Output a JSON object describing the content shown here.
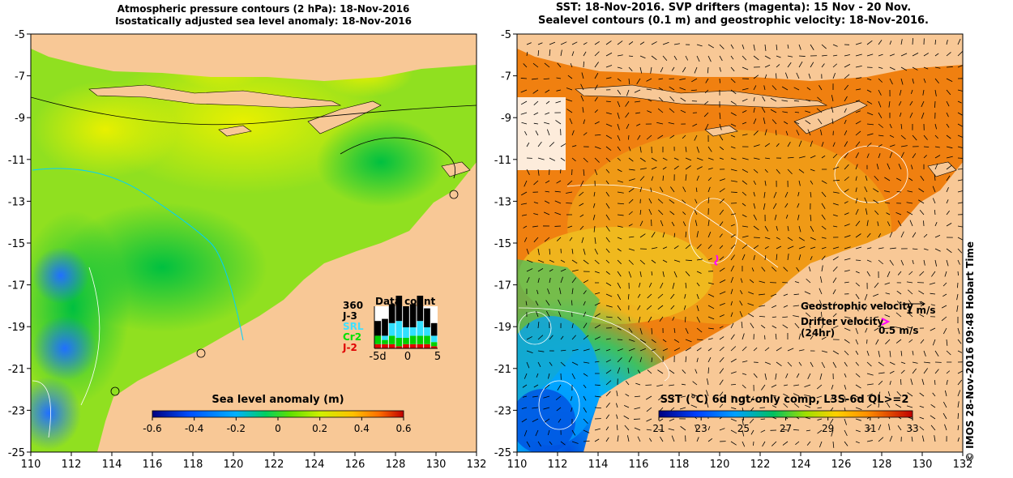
{
  "left_panel": {
    "title_line1": "Atmospheric pressure contours (2 hPa): 18-Nov-2016",
    "title_line2": "Isostatically adjusted sea level anomaly: 18-Nov-2016",
    "colorbar": {
      "title": "Sea level anomaly (m)",
      "ticks": [
        "-0.6",
        "-0.4",
        "-0.2",
        "0",
        "0.2",
        "0.4",
        "0.6"
      ]
    },
    "data_count": {
      "title": "Data count",
      "max_label": "360",
      "sat1": "J-3",
      "sat2": "SRL",
      "sat3": "Cr2",
      "sat4": "J-2",
      "axis_ticks": [
        "-5d",
        "0",
        "5"
      ],
      "bars": [
        {
          "J-2": 0.1,
          "Cr2": 0.2,
          "SRL": 0.0,
          "J-3": 0.35
        },
        {
          "J-2": 0.1,
          "Cr2": 0.1,
          "SRL": 0.1,
          "J-3": 0.4
        },
        {
          "J-2": 0.1,
          "Cr2": 0.2,
          "SRL": 0.3,
          "J-3": 0.45
        },
        {
          "J-2": 0.05,
          "Cr2": 0.2,
          "SRL": 0.4,
          "J-3": 0.6
        },
        {
          "J-2": 0.1,
          "Cr2": 0.15,
          "SRL": 0.25,
          "J-3": 0.5
        },
        {
          "J-2": 0.1,
          "Cr2": 0.2,
          "SRL": 0.2,
          "J-3": 0.55
        },
        {
          "J-2": 0.1,
          "Cr2": 0.2,
          "SRL": 0.35,
          "J-3": 0.6
        },
        {
          "J-2": 0.1,
          "Cr2": 0.2,
          "SRL": 0.2,
          "J-3": 0.45
        },
        {
          "J-2": 0.05,
          "Cr2": 0.1,
          "SRL": 0.15,
          "J-3": 0.3
        }
      ]
    }
  },
  "right_panel": {
    "title_line1": "SST: 18-Nov-2016. SVP drifters (magenta): 15 Nov - 20 Nov.",
    "title_line2": "Sealevel contours (0.1 m) and geostrophic velocity: 18-Nov-2016.",
    "colorbar": {
      "title": "SST (°C) 6d ngt-only comp, L3S-6d QL>=2",
      "ticks": [
        "21",
        "23",
        "25",
        "27",
        "29",
        "31",
        "33"
      ]
    },
    "legend": {
      "geo_label": "Geostrophic velocity",
      "geo_value": "1 m/s",
      "drifter_label": "Drifter velocity",
      "drifter_sub": "(24hr)",
      "drifter_value": "0.5 m/s"
    }
  },
  "axes": {
    "y_ticks": [
      "-5",
      "-7",
      "-9",
      "-11",
      "-13",
      "-15",
      "-17",
      "-19",
      "-21",
      "-23",
      "-25"
    ],
    "x_ticks": [
      "110",
      "112",
      "114",
      "116",
      "118",
      "120",
      "122",
      "124",
      "126",
      "128",
      "130",
      "132"
    ]
  },
  "credit": "© IMOS 28-Nov-2016 09:48 Hobart Time",
  "colors": {
    "land": "#f8c896",
    "ssh_cmap": [
      "#000080",
      "#0050ff",
      "#00b0ff",
      "#00d060",
      "#40e000",
      "#a0f000",
      "#ffd000",
      "#ff8000",
      "#d00000"
    ],
    "sst_cmap": [
      "#000080",
      "#0040ff",
      "#00a0ff",
      "#00c060",
      "#a0e000",
      "#ffd000",
      "#ff9000",
      "#ff6000",
      "#c00000"
    ],
    "drifter": "#ff00ff"
  }
}
